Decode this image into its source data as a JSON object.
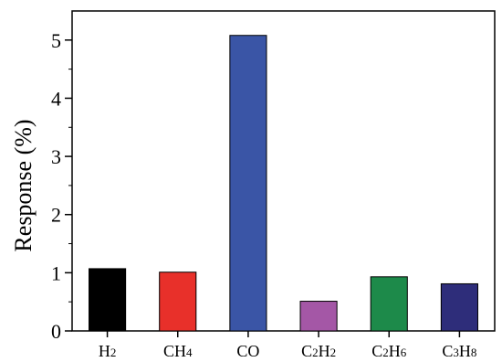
{
  "chart_data": {
    "type": "bar",
    "categories": [
      {
        "base": "H",
        "sub": "2",
        "parts": [
          [
            "H",
            false
          ],
          [
            "2",
            true
          ]
        ]
      },
      {
        "base": "CH",
        "sub": "4",
        "parts": [
          [
            "CH",
            false
          ],
          [
            "4",
            true
          ]
        ]
      },
      {
        "base": "CO",
        "sub": "",
        "parts": [
          [
            "CO",
            false
          ]
        ]
      },
      {
        "base": "C2H2",
        "sub": "",
        "parts": [
          [
            "C",
            false
          ],
          [
            "2",
            true
          ],
          [
            "H",
            false
          ],
          [
            "2",
            true
          ]
        ]
      },
      {
        "base": "C2H6",
        "sub": "",
        "parts": [
          [
            "C",
            false
          ],
          [
            "2",
            true
          ],
          [
            "H",
            false
          ],
          [
            "6",
            true
          ]
        ]
      },
      {
        "base": "C3H8",
        "sub": "",
        "parts": [
          [
            "C",
            false
          ],
          [
            "3",
            true
          ],
          [
            "H",
            false
          ],
          [
            "8",
            true
          ]
        ]
      }
    ],
    "values": [
      1.07,
      1.01,
      5.08,
      0.51,
      0.93,
      0.81
    ],
    "colors": [
      "#000000",
      "#e8302a",
      "#3a55a6",
      "#a457a6",
      "#1d8a4a",
      "#2e2d7a"
    ],
    "ylabel": "Response (%)",
    "xlabel": "",
    "ylim": [
      0,
      5.5
    ],
    "yticks": [
      "0",
      "1",
      "2",
      "3",
      "4",
      "5"
    ],
    "grid": false
  }
}
